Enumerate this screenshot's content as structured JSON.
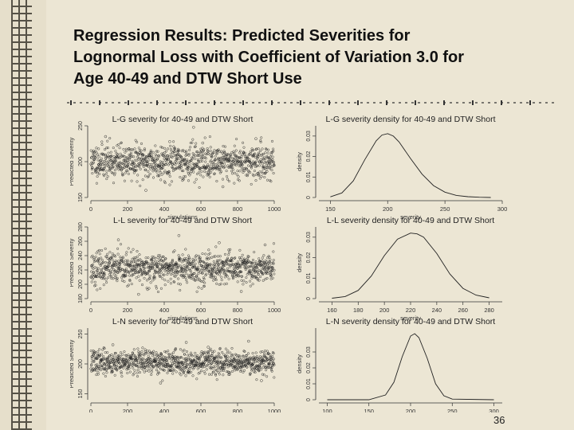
{
  "slide": {
    "title": "Regression Results: Predicted Severities for\nLognormal Loss with Coefficient of Variation 3.0 for\nAge 40-49 and DTW Short Use",
    "page_number": "36"
  },
  "chart_data": [
    {
      "type": "scatter",
      "title": "L-G severity for 40-49 and DTW Short",
      "xlabel": "simulations",
      "ylabel": "Predicted Severity",
      "xlim": [
        0,
        1000
      ],
      "ylim": [
        150,
        250
      ],
      "xticks": [
        0,
        200,
        400,
        600,
        800,
        1000
      ],
      "yticks": [
        150,
        200,
        250
      ],
      "center": 200,
      "spread": 12,
      "n": 1000,
      "seed": 11,
      "outliers": [
        [
          80,
          235
        ],
        [
          430,
          228
        ],
        [
          560,
          248
        ],
        [
          610,
          226
        ],
        [
          900,
          232
        ],
        [
          300,
          160
        ],
        [
          720,
          165
        ]
      ]
    },
    {
      "type": "line",
      "title": "L-G severity density for 40-49 and DTW Short",
      "xlabel": "severity",
      "ylabel": "density",
      "xlim": [
        140,
        300
      ],
      "ylim": [
        0,
        0.035
      ],
      "xticks": [
        150,
        200,
        250,
        300
      ],
      "yticks": [
        0,
        0.01,
        0.02,
        0.03
      ],
      "x": [
        150,
        160,
        170,
        180,
        190,
        195,
        200,
        205,
        210,
        220,
        230,
        240,
        250,
        260,
        270,
        280,
        290
      ],
      "y": [
        0.0003,
        0.0022,
        0.0081,
        0.0184,
        0.0277,
        0.0305,
        0.0312,
        0.03,
        0.0271,
        0.019,
        0.0114,
        0.0058,
        0.0026,
        0.001,
        0.0004,
        0.0001,
        0.0
      ]
    },
    {
      "type": "scatter",
      "title": "L-L severity for 40-49 and DTW Short",
      "xlabel": "simulations",
      "ylabel": "Predicted Severity",
      "xlim": [
        0,
        1000
      ],
      "ylim": [
        180,
        280
      ],
      "xticks": [
        0,
        200,
        400,
        600,
        800,
        1000
      ],
      "yticks": [
        180,
        200,
        220,
        240,
        260,
        280
      ],
      "center": 222,
      "spread": 11,
      "n": 1000,
      "seed": 23,
      "outliers": [
        [
          150,
          262
        ],
        [
          480,
          268
        ],
        [
          700,
          258
        ],
        [
          950,
          255
        ],
        [
          260,
          186
        ],
        [
          820,
          190
        ]
      ]
    },
    {
      "type": "line",
      "title": "L-L severity density for 40-49 and DTW Short",
      "xlabel": "severity",
      "ylabel": "density",
      "xlim": [
        150,
        290
      ],
      "ylim": [
        0,
        0.035
      ],
      "xticks": [
        160,
        180,
        200,
        220,
        240,
        260,
        280
      ],
      "yticks": [
        0,
        0.01,
        0.02,
        0.03
      ],
      "x": [
        160,
        170,
        180,
        190,
        200,
        210,
        220,
        225,
        230,
        240,
        250,
        260,
        270,
        280
      ],
      "y": [
        0.0002,
        0.001,
        0.004,
        0.011,
        0.021,
        0.029,
        0.032,
        0.0316,
        0.03,
        0.022,
        0.012,
        0.005,
        0.0017,
        0.0004
      ]
    },
    {
      "type": "scatter",
      "title": "L-N severity for 40-49 and DTW Short",
      "xlabel": "simulations",
      "ylabel": "Predicted Severity",
      "xlim": [
        0,
        1000
      ],
      "ylim": [
        140,
        260
      ],
      "xticks": [
        0,
        200,
        400,
        600,
        800,
        1000
      ],
      "yticks": [
        150,
        200,
        250
      ],
      "center": 203,
      "spread": 10,
      "n": 1000,
      "seed": 37,
      "outliers": [
        [
          120,
          232
        ],
        [
          520,
          236
        ],
        [
          640,
          228
        ],
        [
          860,
          238
        ],
        [
          380,
          168
        ],
        [
          930,
          172
        ]
      ]
    },
    {
      "type": "line",
      "title": "L-N severity density for 40-49 and DTW Short",
      "xlabel": "severity",
      "ylabel": "density",
      "xlim": [
        90,
        310
      ],
      "ylim": [
        0,
        0.045
      ],
      "xticks": [
        100,
        150,
        200,
        250,
        300
      ],
      "yticks": [
        0,
        0.01,
        0.02,
        0.03
      ],
      "x": [
        100,
        150,
        170,
        180,
        190,
        200,
        205,
        210,
        220,
        230,
        240,
        250,
        300
      ],
      "y": [
        0.0,
        0.0,
        0.003,
        0.011,
        0.027,
        0.04,
        0.0415,
        0.039,
        0.026,
        0.01,
        0.0025,
        0.0004,
        0.0
      ]
    }
  ]
}
